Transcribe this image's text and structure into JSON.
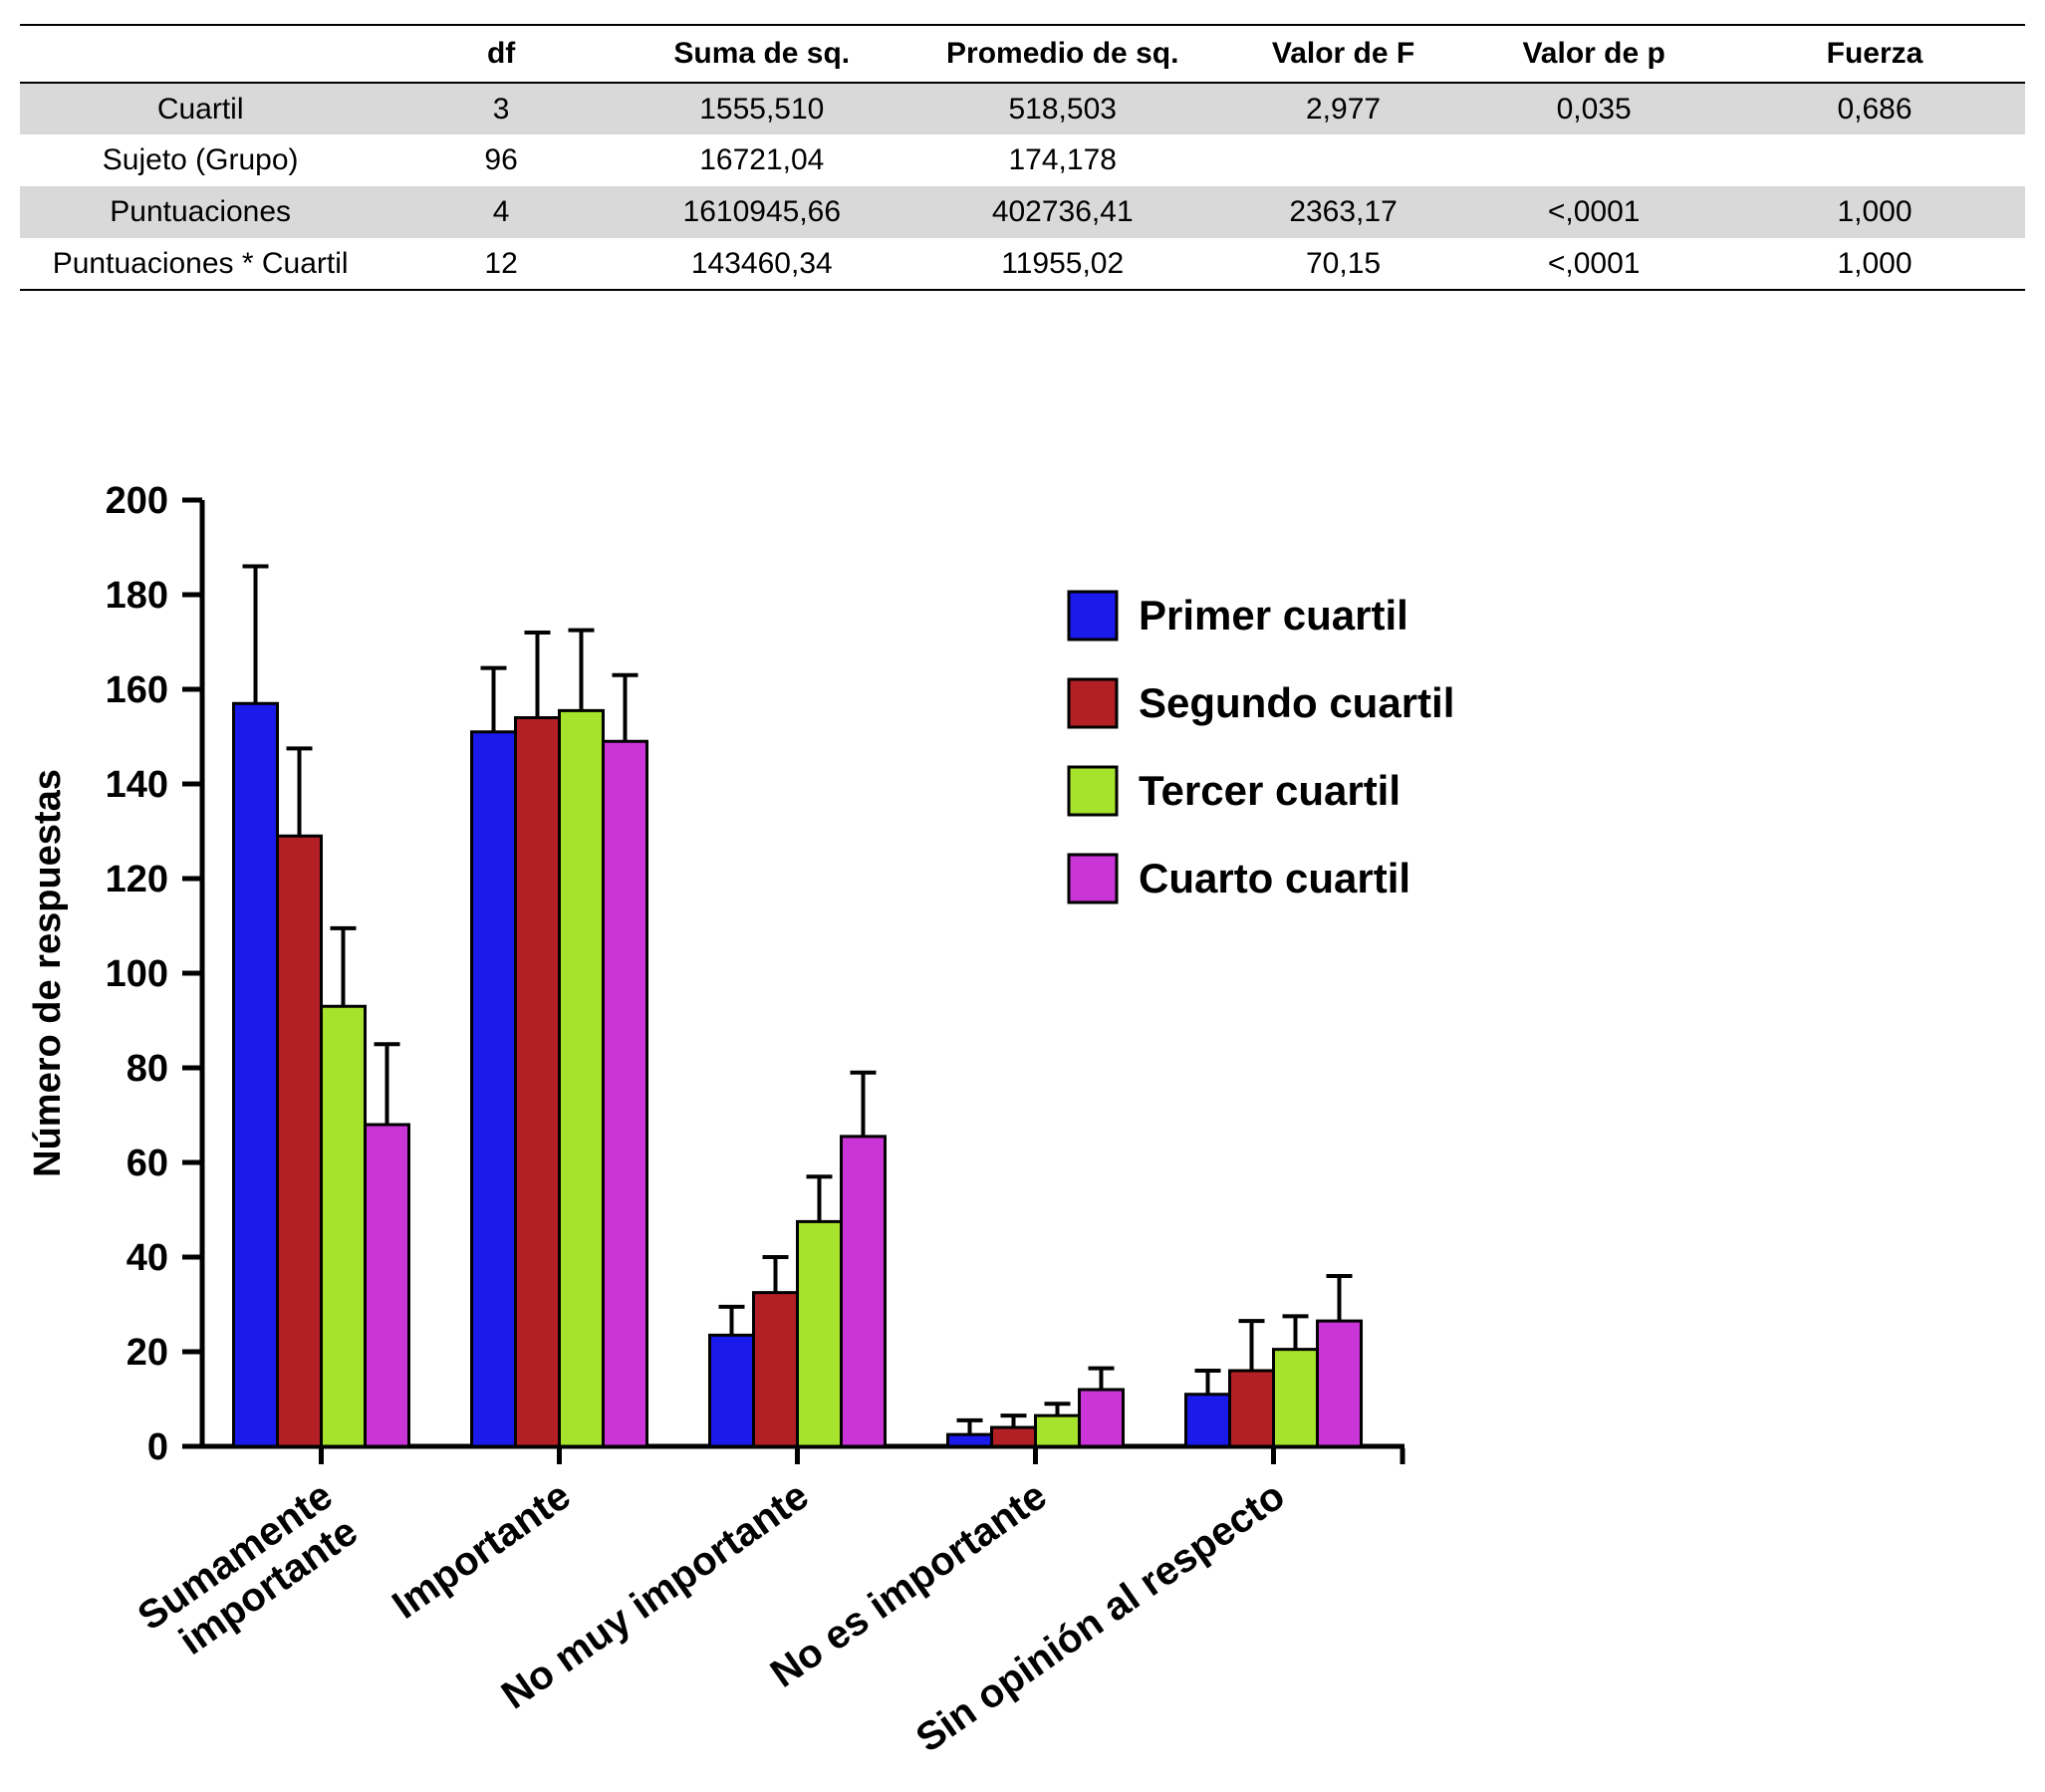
{
  "table": {
    "columns": [
      "",
      "df",
      "Suma de sq.",
      "Promedio de sq.",
      "Valor de F",
      "Valor de p",
      "Fuerza"
    ],
    "rows": [
      {
        "label": "Cuartil",
        "cells": [
          "3",
          "1555,510",
          "518,503",
          "2,977",
          "0,035",
          "0,686"
        ],
        "shaded": true
      },
      {
        "label": "Sujeto (Grupo)",
        "cells": [
          "96",
          "16721,04",
          "174,178",
          "",
          "",
          ""
        ],
        "shaded": false
      },
      {
        "label": "Puntuaciones",
        "cells": [
          "4",
          "1610945,66",
          "402736,41",
          "2363,17",
          "<,0001",
          "1,000"
        ],
        "shaded": true
      },
      {
        "label": "Puntuaciones * Cuartil",
        "cells": [
          "12",
          "143460,34",
          "11955,02",
          "70,15",
          "<,0001",
          "1,000"
        ],
        "shaded": false
      }
    ]
  },
  "chart_data": {
    "type": "bar",
    "title": "",
    "xlabel": "",
    "ylabel": "Número de respuestas",
    "ylim": [
      0,
      200
    ],
    "ytick_step": 20,
    "grid": false,
    "legend_position": "inside-upper-right",
    "categories": [
      "Sumamente\nimportante",
      "Importante",
      "No muy importante",
      "No es importante",
      "Sin opinión al respecto"
    ],
    "series": [
      {
        "name": "Primer cuartil",
        "color": "#1a1aeb",
        "values": [
          157,
          151,
          23.5,
          2.5,
          11
        ],
        "errors_plus": [
          29,
          13.5,
          6,
          3,
          5
        ]
      },
      {
        "name": "Segundo cuartil",
        "color": "#b22025",
        "values": [
          129,
          154,
          32.5,
          4,
          16
        ],
        "errors_plus": [
          18.5,
          18,
          7.5,
          2.5,
          10.5
        ]
      },
      {
        "name": "Tercer cuartil",
        "color": "#a6e32c",
        "values": [
          93,
          155.5,
          47.5,
          6.5,
          20.5
        ],
        "errors_plus": [
          16.5,
          17,
          9.5,
          2.5,
          7
        ]
      },
      {
        "name": "Cuarto cuartil",
        "color": "#c935d6",
        "values": [
          68,
          149,
          65.5,
          12,
          26.5
        ],
        "errors_plus": [
          17,
          14,
          13.5,
          4.5,
          9.5
        ]
      }
    ],
    "bar_outline_color": "#000000",
    "error_bar_color": "#000000"
  }
}
